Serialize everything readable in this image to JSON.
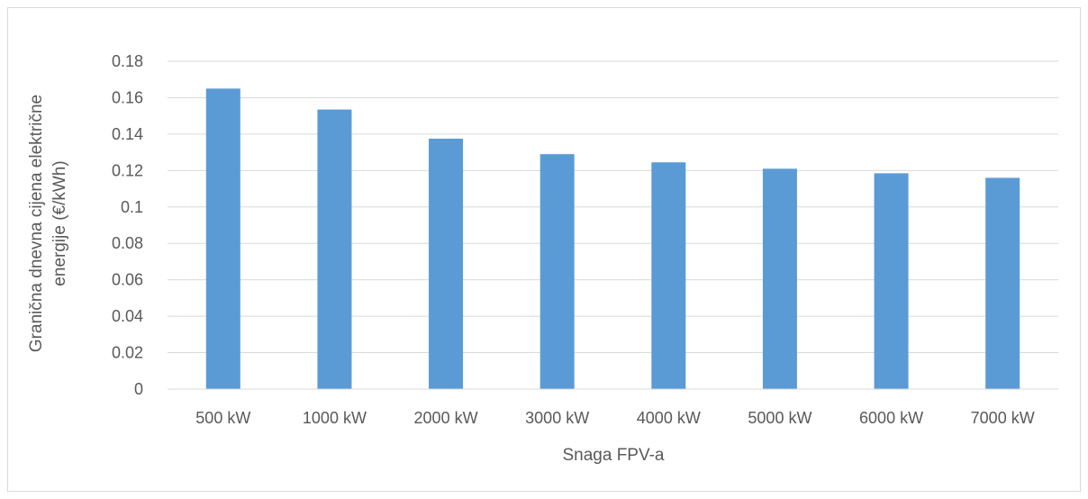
{
  "chart_data": {
    "type": "bar",
    "title": "",
    "xlabel": "Snaga FPV-a",
    "ylabel_lines": [
      "Granična dnevna cijena električne",
      "energije (€/kWh)"
    ],
    "categories": [
      "500 kW",
      "1000 kW",
      "2000 kW",
      "3000 kW",
      "4000 kW",
      "5000 kW",
      "6000 kW",
      "7000 kW"
    ],
    "values": [
      0.165,
      0.1535,
      0.1375,
      0.129,
      0.1245,
      0.121,
      0.1185,
      0.116
    ],
    "ylim": [
      0,
      0.18
    ],
    "yticks": [
      "0",
      "0.02",
      "0.04",
      "0.06",
      "0.08",
      "0.1",
      "0.12",
      "0.14",
      "0.16",
      "0.18"
    ],
    "grid": true,
    "legend": "none",
    "bar_color": "#5b9bd5",
    "grid_color": "#d9d9d9"
  }
}
